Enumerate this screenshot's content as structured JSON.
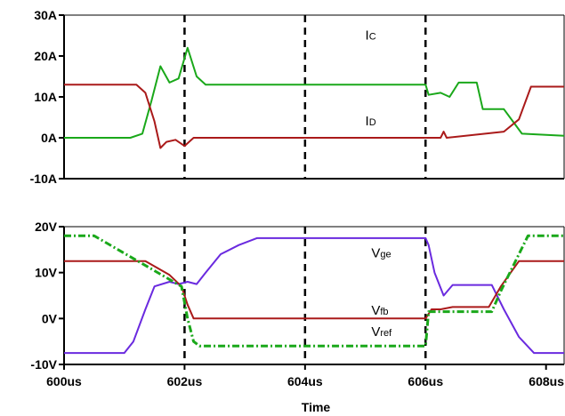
{
  "chart_data": {
    "type": "line",
    "x_ticks": [
      "600us",
      "602us",
      "604us",
      "606us",
      "608us"
    ],
    "xlim": [
      600,
      608.3
    ],
    "xlabel": "Time",
    "markers_us": [
      602,
      604,
      606
    ],
    "panels": [
      {
        "ylim": [
          -10,
          30
        ],
        "y_ticks": [
          {
            "v": 30,
            "label": "30A"
          },
          {
            "v": 20,
            "label": "20A"
          },
          {
            "v": 10,
            "label": "10A"
          },
          {
            "v": 0,
            "label": "0A"
          },
          {
            "v": -10,
            "label": "-10A"
          }
        ],
        "series": [
          {
            "name": "IC",
            "main": "I",
            "sub": "C",
            "color": "#1aa81a",
            "dash": "",
            "label_at": [
              605.0,
              24
            ],
            "points": [
              [
                600,
                0
              ],
              [
                601.1,
                0
              ],
              [
                601.3,
                1
              ],
              [
                601.45,
                9
              ],
              [
                601.6,
                17.5
              ],
              [
                601.75,
                13.5
              ],
              [
                601.9,
                14.5
              ],
              [
                602.05,
                22
              ],
              [
                602.2,
                15
              ],
              [
                602.35,
                13
              ],
              [
                602.5,
                13
              ],
              [
                606,
                13
              ],
              [
                606.05,
                10.5
              ],
              [
                606.25,
                11
              ],
              [
                606.4,
                10
              ],
              [
                606.55,
                13.5
              ],
              [
                606.85,
                13.5
              ],
              [
                606.95,
                7
              ],
              [
                607.3,
                7
              ],
              [
                607.6,
                1
              ],
              [
                608.3,
                0.5
              ]
            ]
          },
          {
            "name": "ID",
            "main": "I",
            "sub": "D",
            "color": "#aa1a1a",
            "dash": "",
            "label_at": [
              605.0,
              3
            ],
            "points": [
              [
                600,
                13
              ],
              [
                601.2,
                13
              ],
              [
                601.35,
                11
              ],
              [
                601.5,
                4
              ],
              [
                601.6,
                -2.5
              ],
              [
                601.7,
                -1
              ],
              [
                601.85,
                -0.5
              ],
              [
                602,
                -2
              ],
              [
                602.15,
                0
              ],
              [
                602.3,
                0
              ],
              [
                606,
                0
              ],
              [
                606.25,
                0
              ],
              [
                606.3,
                1.5
              ],
              [
                606.35,
                0
              ],
              [
                607.3,
                1.5
              ],
              [
                607.55,
                4.5
              ],
              [
                607.75,
                12.5
              ],
              [
                608.3,
                12.5
              ]
            ]
          }
        ]
      },
      {
        "ylim": [
          -10,
          20
        ],
        "y_ticks": [
          {
            "v": 20,
            "label": "20V"
          },
          {
            "v": 10,
            "label": "10V"
          },
          {
            "v": 0,
            "label": "0V"
          },
          {
            "v": -10,
            "label": "-10V"
          }
        ],
        "series": [
          {
            "name": "Vge",
            "main": "V",
            "sub": "ge",
            "color": "#6a2adf",
            "dash": "",
            "label_at": [
              605.1,
              13.3
            ],
            "points": [
              [
                600,
                -7.5
              ],
              [
                601.0,
                -7.5
              ],
              [
                601.15,
                -5
              ],
              [
                601.35,
                2
              ],
              [
                601.5,
                7
              ],
              [
                601.75,
                8
              ],
              [
                601.9,
                7.5
              ],
              [
                602.05,
                8
              ],
              [
                602.2,
                7.5
              ],
              [
                602.35,
                10
              ],
              [
                602.6,
                14
              ],
              [
                602.9,
                16
              ],
              [
                603.2,
                17.5
              ],
              [
                606,
                17.5
              ],
              [
                606.05,
                16
              ],
              [
                606.15,
                10
              ],
              [
                606.3,
                5
              ],
              [
                606.45,
                7.3
              ],
              [
                606.7,
                7.3
              ],
              [
                607.1,
                7.3
              ],
              [
                607.3,
                2
              ],
              [
                607.55,
                -4
              ],
              [
                607.8,
                -7.5
              ],
              [
                608.3,
                -7.5
              ]
            ]
          },
          {
            "name": "Vfb",
            "main": "V",
            "sub": "fb",
            "color": "#aa1a1a",
            "dash": "",
            "label_at": [
              605.1,
              0.8
            ],
            "points": [
              [
                600,
                12.5
              ],
              [
                601.35,
                12.5
              ],
              [
                601.75,
                9.5
              ],
              [
                601.95,
                7
              ],
              [
                602.05,
                3
              ],
              [
                602.15,
                0
              ],
              [
                606,
                0
              ],
              [
                606.1,
                2
              ],
              [
                606.25,
                2
              ],
              [
                606.45,
                2.5
              ],
              [
                607.05,
                2.5
              ],
              [
                607.25,
                7
              ],
              [
                607.55,
                12.5
              ],
              [
                608.3,
                12.5
              ]
            ]
          },
          {
            "name": "Vref",
            "main": "V",
            "sub": "ref",
            "color": "#1aa81a",
            "dash": "8,3,2,3",
            "label_at": [
              605.1,
              -3.8
            ],
            "points": [
              [
                600,
                18
              ],
              [
                600.5,
                18
              ],
              [
                601.95,
                7
              ],
              [
                602.05,
                0
              ],
              [
                602.15,
                -5
              ],
              [
                602.25,
                -6
              ],
              [
                606,
                -6
              ],
              [
                606.05,
                1.5
              ],
              [
                607.1,
                1.5
              ],
              [
                607.25,
                6
              ],
              [
                607.55,
                14
              ],
              [
                607.7,
                18
              ],
              [
                608.3,
                18
              ]
            ]
          }
        ]
      }
    ]
  }
}
